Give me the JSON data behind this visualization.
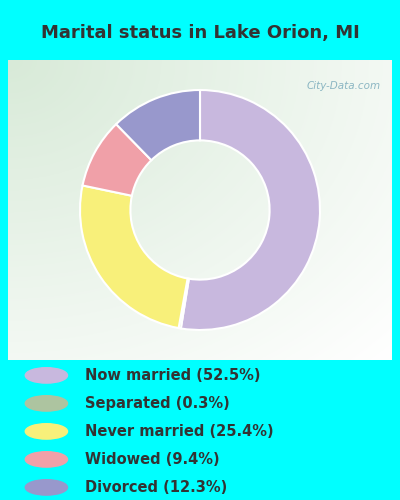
{
  "title": "Marital status in Lake Orion, MI",
  "title_color": "#333333",
  "title_fontsize": 13,
  "bg_color": "#00FFFF",
  "chart_bg_color_green": [
    0.847,
    0.918,
    0.847
  ],
  "chart_bg_color_white": [
    1.0,
    1.0,
    1.0
  ],
  "slices": [
    52.5,
    0.3,
    25.4,
    9.4,
    12.3
  ],
  "labels": [
    "Now married (52.5%)",
    "Separated (0.3%)",
    "Never married (25.4%)",
    "Widowed (9.4%)",
    "Divorced (12.3%)"
  ],
  "colors": [
    "#c8b8de",
    "#adc4a0",
    "#f8f07a",
    "#f0a0a8",
    "#9898cc"
  ],
  "legend_colors": [
    "#c8b8de",
    "#adc4a0",
    "#f8f07a",
    "#f0a0a8",
    "#9898cc"
  ],
  "startangle": 90,
  "watermark": "City-Data.com",
  "legend_fontsize": 10.5,
  "donut_width": 0.42
}
